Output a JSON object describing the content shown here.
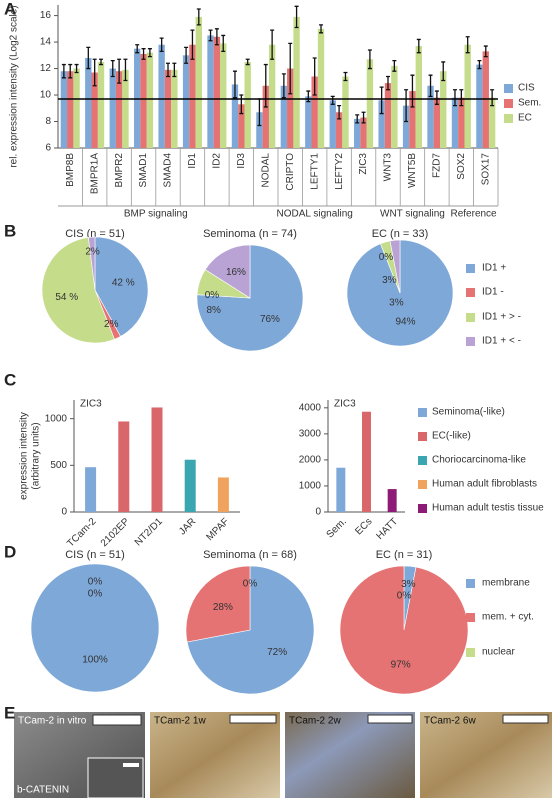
{
  "panel_labels": [
    "A",
    "B",
    "C",
    "D",
    "E"
  ],
  "chart_data": [
    {
      "type": "bar",
      "y_label": "rel. expression intensity (Log2 scale)",
      "groups": [
        {
          "name": "BMP signaling",
          "categories": [
            "BMP8B",
            "BMPR1A",
            "BMPR2",
            "SMAD1",
            "SMAD4",
            "ID1",
            "ID2",
            "ID3"
          ]
        },
        {
          "name": "NODAL signaling",
          "categories": [
            "NODAL",
            "CRIPTO",
            "LEFTY1",
            "LEFTY2",
            "ZIC3"
          ]
        },
        {
          "name": "WNT signaling",
          "categories": [
            "WNT3",
            "WNT5B",
            "FZD7"
          ]
        },
        {
          "name": "Reference",
          "categories": [
            "SOX2",
            "SOX17"
          ]
        }
      ],
      "series": [
        {
          "name": "CIS",
          "color": "#7ea8d8",
          "values": [
            11.8,
            12.8,
            12.0,
            13.5,
            13.8,
            13.0,
            14.5,
            10.8,
            8.7,
            10.7,
            9.9,
            9.6,
            8.2,
            9.6,
            9.2,
            10.7,
            9.8,
            12.3
          ],
          "errors": [
            0.5,
            0.8,
            0.6,
            0.3,
            0.5,
            0.6,
            0.4,
            1.0,
            1.0,
            0.9,
            0.4,
            0.3,
            0.3,
            1.0,
            1.2,
            0.8,
            0.6,
            0.3
          ]
        },
        {
          "name": "Sem.",
          "color": "#e57373",
          "values": [
            11.8,
            11.7,
            11.8,
            13.1,
            11.9,
            13.8,
            14.4,
            9.3,
            10.7,
            12.0,
            11.4,
            8.7,
            8.3,
            10.9,
            10.3,
            9.8,
            9.8,
            13.3
          ],
          "errors": [
            0.5,
            1.0,
            0.9,
            0.4,
            0.5,
            1.1,
            0.6,
            0.7,
            1.6,
            1.9,
            1.4,
            0.5,
            0.4,
            0.5,
            1.2,
            0.5,
            0.6,
            0.4
          ]
        },
        {
          "name": "EC",
          "color": "#c5dc8a",
          "values": [
            12.0,
            12.5,
            11.9,
            13.2,
            11.9,
            15.9,
            13.9,
            12.5,
            13.8,
            15.9,
            15.0,
            11.4,
            12.7,
            12.2,
            13.7,
            11.8,
            13.8,
            9.8
          ],
          "errors": [
            0.3,
            0.2,
            0.8,
            0.3,
            0.5,
            0.6,
            0.6,
            0.2,
            1.1,
            0.8,
            0.3,
            0.3,
            0.7,
            0.4,
            0.5,
            0.7,
            0.6,
            0.6
          ]
        }
      ],
      "reference_line": 9.7,
      "ylim": [
        6,
        16.8
      ],
      "yticks": [
        6,
        8,
        10,
        12,
        14,
        16
      ]
    },
    {
      "type": "pie",
      "categories": [
        "ID1 +",
        "ID1 -",
        "ID1 + > -",
        "ID1 + < -"
      ],
      "colors": [
        "#7ea8d8",
        "#e57373",
        "#c5dc8a",
        "#b8a3d4"
      ],
      "pies": [
        {
          "title": "CIS (n = 51)",
          "values": [
            42,
            2,
            54,
            2
          ],
          "value_labels": [
            "42 %",
            "2%",
            "54 %",
            "2%"
          ]
        },
        {
          "title": "Seminoma (n = 74)",
          "values": [
            76,
            0,
            8,
            16
          ],
          "value_labels": [
            "76%",
            "0%",
            "8%",
            "16%"
          ]
        },
        {
          "title": "EC (n = 33)",
          "values": [
            94,
            0,
            3,
            3
          ],
          "value_labels": [
            "94%",
            "0%",
            "3%",
            "3%"
          ]
        }
      ]
    },
    {
      "type": "bar",
      "y_label": [
        "expression intensity",
        "(arbitrary units)"
      ],
      "legend": {
        "names": [
          "Seminoma(-like)",
          "EC(-like)",
          "Choriocarcinoma-like",
          "Human adult fibroblasts",
          "Human adult testis tissue"
        ],
        "colors": [
          "#7ea8d8",
          "#d9676a",
          "#3aa6b0",
          "#f0a35c",
          "#8e1a78"
        ]
      },
      "charts": [
        {
          "title": "ZIC3",
          "categories": [
            "TCam-2",
            "2102EP",
            "NT2/D1",
            "JAR",
            "MPAF"
          ],
          "values": [
            480,
            970,
            1120,
            560,
            370
          ],
          "colors": [
            "#7ea8d8",
            "#d9676a",
            "#d9676a",
            "#3aa6b0",
            "#f0a35c"
          ],
          "ylim": [
            0,
            1200
          ],
          "yticks": [
            0,
            500,
            1000
          ]
        },
        {
          "title": "ZIC3",
          "categories": [
            "Sem.",
            "ECs",
            "HATT"
          ],
          "values": [
            1700,
            3850,
            880
          ],
          "colors": [
            "#7ea8d8",
            "#d9676a",
            "#8e1a78"
          ],
          "ylim": [
            0,
            4300
          ],
          "yticks": [
            0,
            1000,
            2000,
            3000,
            4000
          ]
        }
      ]
    },
    {
      "type": "pie",
      "categories": [
        "membrane",
        "mem. + cyt.",
        "nuclear"
      ],
      "colors": [
        "#7ea8d8",
        "#e57373",
        "#c5dc8a"
      ],
      "pies": [
        {
          "title": "CIS (n = 51)",
          "values": [
            100,
            0,
            0
          ],
          "value_labels": [
            "100%",
            "0%",
            "0%"
          ]
        },
        {
          "title": "Seminoma (n = 68)",
          "values": [
            72,
            28,
            0
          ],
          "value_labels": [
            "72%",
            "28%",
            "0%"
          ]
        },
        {
          "title": "EC (n = 31)",
          "values": [
            3,
            97,
            0
          ],
          "value_labels": [
            "3%",
            "97%",
            "0%"
          ]
        }
      ]
    }
  ],
  "images": {
    "labels": [
      "TCam-2 in vitro",
      "TCam-2 1w",
      "TCam-2 2w",
      "TCam-2 6w"
    ],
    "stain": "b-CATENIN"
  }
}
